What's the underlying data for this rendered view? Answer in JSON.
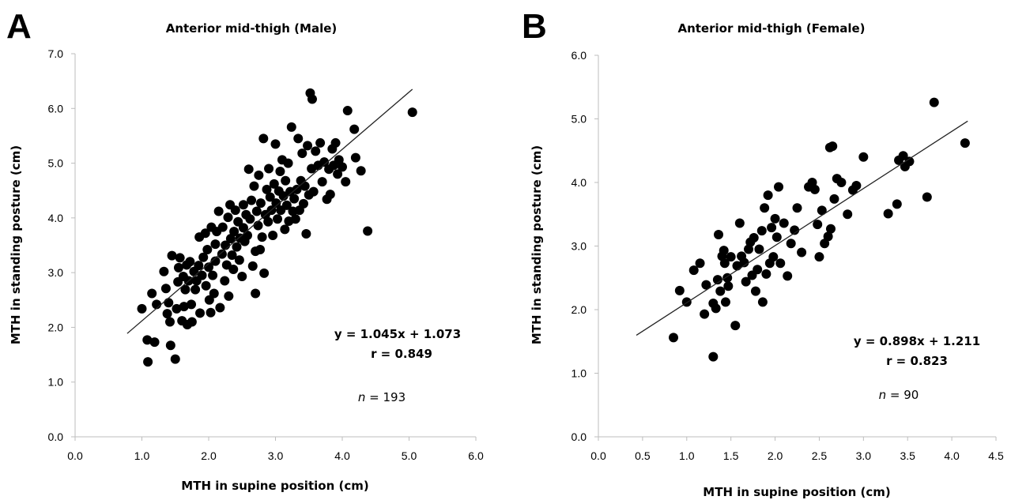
{
  "chart_data": [
    {
      "panel": "A",
      "type": "scatter",
      "title": "Anterior mid-thigh (Male)",
      "xlabel": "MTH in supine position (cm)",
      "ylabel": "MTH in standing posture (cm)",
      "xlim": [
        0,
        6
      ],
      "ylim": [
        0,
        7
      ],
      "x_ticks": [
        "0.0",
        "1.0",
        "2.0",
        "3.0",
        "4.0",
        "5.0",
        "6.0"
      ],
      "y_ticks": [
        "0.0",
        "1.0",
        "2.0",
        "3.0",
        "4.0",
        "5.0",
        "6.0",
        "7.0"
      ],
      "equation": "y = 1.045x + 1.073",
      "r_text": "r = 0.849",
      "n_italic": "n",
      "n_rest": " = 193",
      "fit": {
        "slope": 1.045,
        "intercept": 1.073,
        "x_start": 0.78,
        "x_end": 5.05
      },
      "points": [
        [
          1.0,
          2.34
        ],
        [
          1.08,
          1.77
        ],
        [
          1.09,
          1.37
        ],
        [
          1.15,
          2.62
        ],
        [
          1.19,
          1.73
        ],
        [
          1.22,
          2.42
        ],
        [
          1.33,
          3.02
        ],
        [
          1.36,
          2.71
        ],
        [
          1.38,
          2.25
        ],
        [
          1.4,
          2.45
        ],
        [
          1.42,
          2.1
        ],
        [
          1.43,
          1.67
        ],
        [
          1.45,
          3.31
        ],
        [
          1.5,
          1.42
        ],
        [
          1.52,
          2.34
        ],
        [
          1.54,
          2.83
        ],
        [
          1.55,
          3.09
        ],
        [
          1.57,
          3.27
        ],
        [
          1.6,
          2.12
        ],
        [
          1.62,
          2.93
        ],
        [
          1.63,
          2.38
        ],
        [
          1.65,
          2.69
        ],
        [
          1.67,
          3.14
        ],
        [
          1.68,
          2.05
        ],
        [
          1.7,
          2.85
        ],
        [
          1.72,
          3.2
        ],
        [
          1.74,
          2.42
        ],
        [
          1.75,
          2.1
        ],
        [
          1.78,
          3.02
        ],
        [
          1.8,
          2.69
        ],
        [
          1.82,
          2.85
        ],
        [
          1.85,
          3.13
        ],
        [
          1.86,
          3.65
        ],
        [
          1.87,
          2.26
        ],
        [
          1.9,
          2.95
        ],
        [
          1.92,
          3.28
        ],
        [
          1.95,
          3.72
        ],
        [
          1.96,
          2.76
        ],
        [
          1.98,
          3.42
        ],
        [
          2.0,
          3.1
        ],
        [
          2.01,
          2.5
        ],
        [
          2.03,
          2.27
        ],
        [
          2.04,
          3.83
        ],
        [
          2.06,
          2.95
        ],
        [
          2.08,
          2.62
        ],
        [
          2.1,
          3.21
        ],
        [
          2.1,
          3.52
        ],
        [
          2.12,
          3.75
        ],
        [
          2.15,
          4.12
        ],
        [
          2.17,
          2.36
        ],
        [
          2.2,
          3.34
        ],
        [
          2.21,
          3.83
        ],
        [
          2.24,
          2.85
        ],
        [
          2.25,
          3.5
        ],
        [
          2.27,
          3.14
        ],
        [
          2.29,
          4.01
        ],
        [
          2.3,
          2.57
        ],
        [
          2.32,
          4.24
        ],
        [
          2.33,
          3.62
        ],
        [
          2.35,
          3.32
        ],
        [
          2.37,
          3.06
        ],
        [
          2.38,
          3.75
        ],
        [
          2.4,
          4.14
        ],
        [
          2.42,
          3.47
        ],
        [
          2.44,
          3.93
        ],
        [
          2.46,
          3.23
        ],
        [
          2.47,
          3.63
        ],
        [
          2.5,
          2.93
        ],
        [
          2.52,
          3.82
        ],
        [
          2.52,
          4.24
        ],
        [
          2.54,
          3.57
        ],
        [
          2.56,
          4.06
        ],
        [
          2.58,
          3.68
        ],
        [
          2.6,
          4.89
        ],
        [
          2.62,
          3.98
        ],
        [
          2.64,
          4.32
        ],
        [
          2.66,
          3.12
        ],
        [
          2.68,
          4.58
        ],
        [
          2.7,
          3.39
        ],
        [
          2.7,
          2.62
        ],
        [
          2.72,
          4.12
        ],
        [
          2.74,
          3.86
        ],
        [
          2.75,
          4.78
        ],
        [
          2.77,
          3.42
        ],
        [
          2.78,
          4.27
        ],
        [
          2.8,
          3.65
        ],
        [
          2.82,
          5.45
        ],
        [
          2.83,
          2.99
        ],
        [
          2.85,
          4.06
        ],
        [
          2.87,
          4.52
        ],
        [
          2.89,
          3.93
        ],
        [
          2.9,
          4.9
        ],
        [
          2.92,
          4.38
        ],
        [
          2.94,
          4.14
        ],
        [
          2.96,
          3.68
        ],
        [
          2.98,
          4.62
        ],
        [
          3.0,
          5.35
        ],
        [
          3.01,
          4.27
        ],
        [
          3.03,
          3.98
        ],
        [
          3.05,
          4.49
        ],
        [
          3.07,
          4.85
        ],
        [
          3.08,
          4.14
        ],
        [
          3.1,
          5.06
        ],
        [
          3.12,
          4.4
        ],
        [
          3.14,
          3.79
        ],
        [
          3.15,
          4.68
        ],
        [
          3.17,
          4.23
        ],
        [
          3.19,
          5.0
        ],
        [
          3.2,
          3.94
        ],
        [
          3.22,
          4.48
        ],
        [
          3.24,
          5.66
        ],
        [
          3.26,
          4.12
        ],
        [
          3.28,
          4.35
        ],
        [
          3.3,
          3.98
        ],
        [
          3.32,
          4.52
        ],
        [
          3.34,
          5.45
        ],
        [
          3.36,
          4.14
        ],
        [
          3.38,
          4.68
        ],
        [
          3.4,
          5.18
        ],
        [
          3.42,
          4.26
        ],
        [
          3.44,
          4.58
        ],
        [
          3.46,
          3.71
        ],
        [
          3.48,
          5.32
        ],
        [
          3.5,
          4.42
        ],
        [
          3.52,
          6.28
        ],
        [
          3.54,
          4.9
        ],
        [
          3.55,
          6.17
        ],
        [
          3.57,
          4.48
        ],
        [
          3.6,
          5.22
        ],
        [
          3.64,
          4.96
        ],
        [
          3.67,
          5.37
        ],
        [
          3.7,
          4.66
        ],
        [
          3.73,
          5.02
        ],
        [
          3.77,
          4.34
        ],
        [
          3.8,
          4.89
        ],
        [
          3.82,
          4.43
        ],
        [
          3.85,
          5.26
        ],
        [
          3.87,
          4.96
        ],
        [
          3.9,
          5.37
        ],
        [
          3.93,
          4.8
        ],
        [
          3.95,
          5.06
        ],
        [
          4.0,
          4.93
        ],
        [
          4.05,
          4.66
        ],
        [
          4.08,
          5.96
        ],
        [
          4.18,
          5.62
        ],
        [
          4.2,
          5.1
        ],
        [
          4.28,
          4.86
        ],
        [
          4.38,
          3.76
        ],
        [
          5.05,
          5.93
        ]
      ]
    },
    {
      "panel": "B",
      "type": "scatter",
      "title": "Anterior mid-thigh (Female)",
      "xlabel": "MTH in supine position (cm)",
      "ylabel": "MTH in standing posture (cm)",
      "xlim": [
        0,
        4.5
      ],
      "ylim": [
        0,
        6
      ],
      "x_ticks": [
        "0.0",
        "0.5",
        "1.0",
        "1.5",
        "2.0",
        "2.5",
        "3.0",
        "3.5",
        "4.0",
        "4.5"
      ],
      "y_ticks": [
        "0.0",
        "1.0",
        "2.0",
        "3.0",
        "4.0",
        "5.0",
        "6.0"
      ],
      "equation": "y = 0.898x + 1.211",
      "r_text": "r = 0.823",
      "n_italic": "n",
      "n_rest": " = 90",
      "fit": {
        "slope": 0.898,
        "intercept": 1.211,
        "x_start": 0.43,
        "x_end": 4.18
      },
      "points": [
        [
          0.85,
          1.56
        ],
        [
          0.92,
          2.3
        ],
        [
          1.0,
          2.12
        ],
        [
          1.08,
          2.62
        ],
        [
          1.15,
          2.73
        ],
        [
          1.2,
          1.93
        ],
        [
          1.22,
          2.39
        ],
        [
          1.3,
          1.26
        ],
        [
          1.3,
          2.1
        ],
        [
          1.33,
          2.02
        ],
        [
          1.35,
          2.47
        ],
        [
          1.36,
          3.18
        ],
        [
          1.38,
          2.29
        ],
        [
          1.4,
          2.84
        ],
        [
          1.42,
          2.93
        ],
        [
          1.43,
          2.73
        ],
        [
          1.44,
          2.12
        ],
        [
          1.46,
          2.5
        ],
        [
          1.47,
          2.37
        ],
        [
          1.5,
          2.83
        ],
        [
          1.55,
          1.75
        ],
        [
          1.57,
          2.69
        ],
        [
          1.6,
          3.36
        ],
        [
          1.62,
          2.84
        ],
        [
          1.65,
          2.74
        ],
        [
          1.67,
          2.44
        ],
        [
          1.7,
          2.95
        ],
        [
          1.72,
          3.06
        ],
        [
          1.74,
          2.54
        ],
        [
          1.76,
          3.13
        ],
        [
          1.78,
          2.29
        ],
        [
          1.8,
          2.63
        ],
        [
          1.82,
          2.95
        ],
        [
          1.85,
          3.24
        ],
        [
          1.86,
          2.12
        ],
        [
          1.88,
          3.6
        ],
        [
          1.9,
          2.56
        ],
        [
          1.92,
          3.8
        ],
        [
          1.94,
          2.73
        ],
        [
          1.96,
          3.29
        ],
        [
          1.98,
          2.83
        ],
        [
          2.0,
          3.43
        ],
        [
          2.02,
          3.14
        ],
        [
          2.04,
          3.93
        ],
        [
          2.06,
          2.73
        ],
        [
          2.1,
          3.36
        ],
        [
          2.14,
          2.53
        ],
        [
          2.18,
          3.04
        ],
        [
          2.22,
          3.25
        ],
        [
          2.25,
          3.6
        ],
        [
          2.3,
          2.9
        ],
        [
          2.38,
          3.93
        ],
        [
          2.42,
          4.0
        ],
        [
          2.45,
          3.89
        ],
        [
          2.48,
          3.34
        ],
        [
          2.5,
          2.83
        ],
        [
          2.53,
          3.56
        ],
        [
          2.56,
          3.04
        ],
        [
          2.6,
          3.15
        ],
        [
          2.62,
          4.55
        ],
        [
          2.63,
          3.27
        ],
        [
          2.65,
          4.57
        ],
        [
          2.67,
          3.74
        ],
        [
          2.7,
          4.06
        ],
        [
          2.75,
          4.0
        ],
        [
          2.82,
          3.5
        ],
        [
          2.88,
          3.88
        ],
        [
          2.92,
          3.95
        ],
        [
          3.0,
          4.4
        ],
        [
          3.28,
          3.51
        ],
        [
          3.38,
          3.66
        ],
        [
          3.4,
          4.35
        ],
        [
          3.45,
          4.42
        ],
        [
          3.47,
          4.25
        ],
        [
          3.52,
          4.33
        ],
        [
          3.72,
          3.77
        ],
        [
          3.8,
          5.26
        ],
        [
          4.15,
          4.62
        ]
      ]
    }
  ]
}
